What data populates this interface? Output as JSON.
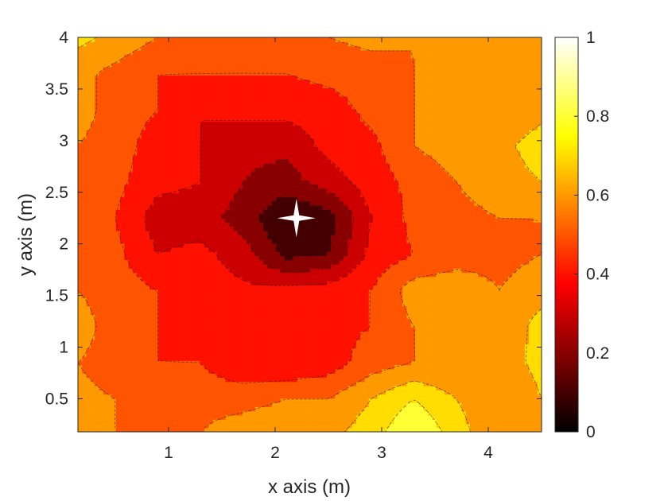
{
  "chart_data": {
    "type": "heatmap",
    "subtype": "filled-contour",
    "xlabel": "x axis (m)",
    "ylabel": "y axis (m)",
    "xlim": [
      0.15,
      4.5
    ],
    "ylim": [
      0.18,
      4.0
    ],
    "xticks": [
      1,
      2,
      3,
      4
    ],
    "yticks": [
      0.5,
      1,
      1.5,
      2,
      2.5,
      3,
      3.5,
      4
    ],
    "colorbar": {
      "range": [
        0,
        1
      ],
      "ticks": [
        0,
        0.2,
        0.4,
        0.6,
        0.8,
        1
      ],
      "colormap": "hot"
    },
    "contour_levels": [
      0.05,
      0.15,
      0.25,
      0.35,
      0.45,
      0.55,
      0.65,
      0.75,
      0.85
    ],
    "grid_x": [
      0.15,
      0.5,
      0.9,
      1.3,
      1.7,
      2.1,
      2.5,
      2.9,
      3.3,
      3.7,
      4.1,
      4.5
    ],
    "grid_y": [
      0.18,
      0.5,
      0.85,
      1.2,
      1.55,
      1.9,
      2.25,
      2.6,
      2.95,
      3.3,
      3.65,
      4.0
    ],
    "z": [
      [
        0.55,
        0.55,
        0.55,
        0.55,
        0.62,
        0.65,
        0.62,
        0.7,
        0.85,
        0.7,
        0.55,
        0.65
      ],
      [
        0.58,
        0.55,
        0.5,
        0.5,
        0.5,
        0.55,
        0.55,
        0.65,
        0.75,
        0.65,
        0.55,
        0.65
      ],
      [
        0.55,
        0.5,
        0.45,
        0.45,
        0.38,
        0.35,
        0.4,
        0.5,
        0.55,
        0.55,
        0.6,
        0.68
      ],
      [
        0.6,
        0.5,
        0.45,
        0.4,
        0.35,
        0.35,
        0.42,
        0.45,
        0.55,
        0.6,
        0.55,
        0.7
      ],
      [
        0.55,
        0.5,
        0.45,
        0.4,
        0.37,
        0.38,
        0.4,
        0.45,
        0.6,
        0.62,
        0.55,
        0.6
      ],
      [
        0.5,
        0.48,
        0.35,
        0.38,
        0.3,
        0.12,
        0.15,
        0.38,
        0.45,
        0.5,
        0.52,
        0.55
      ],
      [
        0.55,
        0.45,
        0.3,
        0.3,
        0.2,
        0.05,
        0.1,
        0.35,
        0.48,
        0.52,
        0.55,
        0.55
      ],
      [
        0.55,
        0.48,
        0.38,
        0.35,
        0.25,
        0.2,
        0.3,
        0.4,
        0.48,
        0.55,
        0.6,
        0.65
      ],
      [
        0.55,
        0.5,
        0.4,
        0.35,
        0.28,
        0.28,
        0.38,
        0.42,
        0.55,
        0.6,
        0.62,
        0.7
      ],
      [
        0.6,
        0.5,
        0.45,
        0.35,
        0.38,
        0.38,
        0.4,
        0.48,
        0.55,
        0.58,
        0.55,
        0.62
      ],
      [
        0.58,
        0.52,
        0.45,
        0.45,
        0.45,
        0.45,
        0.48,
        0.5,
        0.55,
        0.58,
        0.58,
        0.62
      ],
      [
        0.68,
        0.62,
        0.55,
        0.55,
        0.5,
        0.52,
        0.55,
        0.58,
        0.55,
        0.6,
        0.62,
        0.65
      ]
    ],
    "marker": {
      "x": 2.2,
      "y": 2.25,
      "shape": "four-pointed-star",
      "color": "#ffffff"
    }
  }
}
